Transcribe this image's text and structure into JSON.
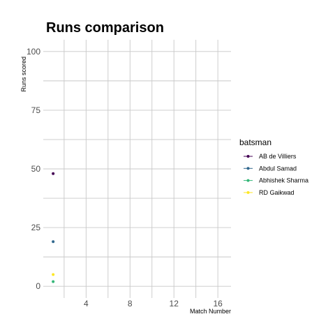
{
  "chart_data": {
    "type": "scatter",
    "title": "Runs comparison",
    "xlabel": "Match Number",
    "ylabel": "Runs scored",
    "xlim": [
      0.1,
      17.2
    ],
    "ylim": [
      -5,
      105
    ],
    "x_ticks": [
      4,
      8,
      12,
      16
    ],
    "y_ticks": [
      0,
      25,
      50,
      75,
      100
    ],
    "x_major_grid": [
      2,
      6,
      10,
      14
    ],
    "y_minor_grid": [
      12.5,
      37.5,
      62.5,
      87.5
    ],
    "grid": true,
    "legend": {
      "title": "batsman",
      "placement": "right",
      "entries": [
        "AB de Villiers",
        "Abdul Samad",
        "Abhishek Sharma",
        "RD Gaikwad"
      ]
    },
    "series": [
      {
        "name": "AB de Villiers",
        "color": "#440154",
        "points": [
          {
            "x": 1,
            "y": 48
          }
        ]
      },
      {
        "name": "Abdul Samad",
        "color": "#31688E",
        "points": [
          {
            "x": 1,
            "y": 19
          }
        ]
      },
      {
        "name": "Abhishek Sharma",
        "color": "#35B779",
        "points": [
          {
            "x": 1,
            "y": 2
          }
        ]
      },
      {
        "name": "RD Gaikwad",
        "color": "#FDE725",
        "points": [
          {
            "x": 1,
            "y": 5
          }
        ]
      }
    ]
  }
}
